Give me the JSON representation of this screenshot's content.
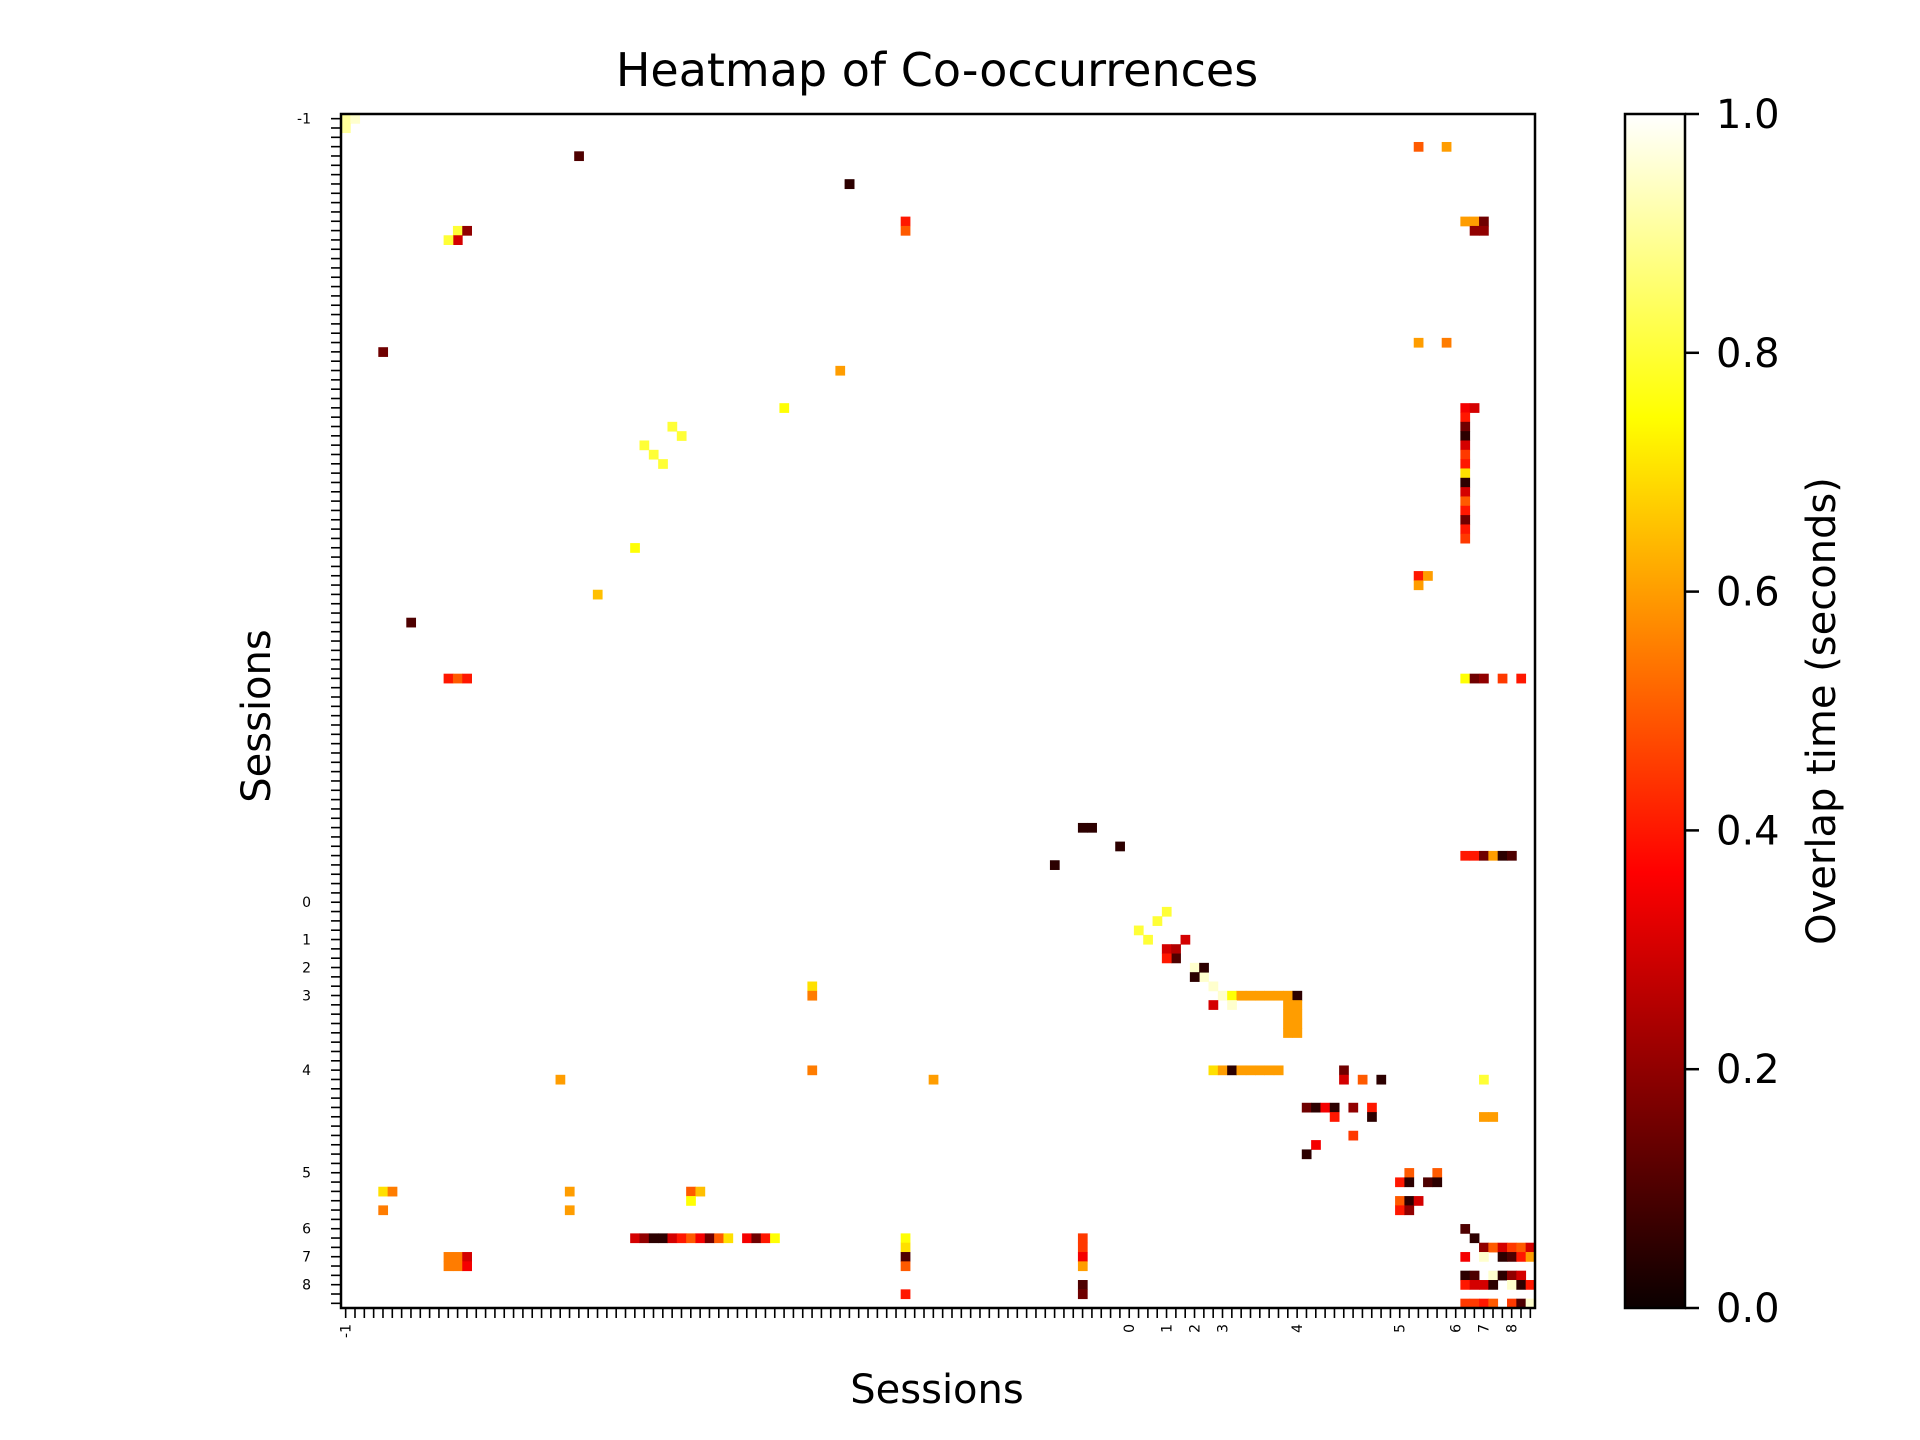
{
  "chart_data": {
    "type": "heatmap",
    "title": "Heatmap of Co-occurrences",
    "xlabel": "Sessions",
    "ylabel": "Sessions",
    "colormap": "hot",
    "colorbar": {
      "label": "Overlap time (seconds)",
      "range": [
        0.0,
        1.0
      ],
      "ticks": [
        "0.0",
        "0.2",
        "0.4",
        "0.6",
        "0.8",
        "1.0"
      ]
    },
    "x_ticks": [
      {
        "label": "-1",
        "index": 0
      },
      {
        "label": "0",
        "index": 84
      },
      {
        "label": "1",
        "index": 88
      },
      {
        "label": "2",
        "index": 91
      },
      {
        "label": "3",
        "index": 94
      },
      {
        "label": "4",
        "index": 102
      },
      {
        "label": "5",
        "index": 113
      },
      {
        "label": "6",
        "index": 119
      },
      {
        "label": "7",
        "index": 122
      },
      {
        "label": "8",
        "index": 125
      }
    ],
    "y_ticks": [
      {
        "label": "-1",
        "index": 0
      },
      {
        "label": "0",
        "index": 84
      },
      {
        "label": "1",
        "index": 88
      },
      {
        "label": "2",
        "index": 91
      },
      {
        "label": "3",
        "index": 94
      },
      {
        "label": "4",
        "index": 102
      },
      {
        "label": "5",
        "index": 113
      },
      {
        "label": "6",
        "index": 119
      },
      {
        "label": "7",
        "index": 122
      },
      {
        "label": "8",
        "index": 125
      }
    ],
    "matrix_size": 128,
    "cells": [
      [
        0,
        0,
        0.9
      ],
      [
        1,
        0,
        0.95
      ],
      [
        0,
        1,
        0.9
      ],
      [
        25,
        4,
        0.1
      ],
      [
        54,
        7,
        0.05
      ],
      [
        12,
        12,
        0.8
      ],
      [
        13,
        12,
        0.2
      ],
      [
        12,
        13,
        0.3
      ],
      [
        11,
        13,
        0.8
      ],
      [
        60,
        11,
        0.4
      ],
      [
        60,
        12,
        0.5
      ],
      [
        4,
        25,
        0.15
      ],
      [
        53,
        27,
        0.6
      ],
      [
        47,
        31,
        0.75
      ],
      [
        35,
        33,
        0.8
      ],
      [
        36,
        34,
        0.8
      ],
      [
        32,
        35,
        0.8
      ],
      [
        33,
        36,
        0.8
      ],
      [
        34,
        37,
        0.8
      ],
      [
        31,
        46,
        0.75
      ],
      [
        27,
        51,
        0.65
      ],
      [
        7,
        54,
        0.1
      ],
      [
        11,
        60,
        0.4
      ],
      [
        12,
        60,
        0.5
      ],
      [
        13,
        60,
        0.4
      ],
      [
        80,
        76,
        0.05
      ],
      [
        76,
        80,
        0.05
      ],
      [
        87,
        86,
        0.8
      ],
      [
        88,
        85,
        0.8
      ],
      [
        85,
        87,
        0.8
      ],
      [
        86,
        88,
        0.8
      ],
      [
        88,
        89,
        0.3
      ],
      [
        89,
        89,
        0.25
      ],
      [
        89,
        90,
        0.1
      ],
      [
        88,
        90,
        0.4
      ],
      [
        90,
        88,
        0.3
      ],
      [
        91,
        91,
        0.95
      ],
      [
        92,
        92,
        0.95
      ],
      [
        91,
        92,
        0.05
      ],
      [
        92,
        91,
        0.05
      ],
      [
        93,
        93,
        0.95
      ],
      [
        94,
        94,
        0.95
      ],
      [
        95,
        94,
        0.75
      ],
      [
        96,
        94,
        0.6
      ],
      [
        97,
        94,
        0.6
      ],
      [
        98,
        94,
        0.6
      ],
      [
        99,
        94,
        0.6
      ],
      [
        100,
        94,
        0.6
      ],
      [
        101,
        94,
        0.6
      ],
      [
        102,
        94,
        0.05
      ],
      [
        93,
        95,
        0.3
      ],
      [
        95,
        95,
        0.95
      ],
      [
        101,
        95,
        0.6
      ],
      [
        102,
        95,
        0.6
      ],
      [
        101,
        96,
        0.6
      ],
      [
        102,
        96,
        0.6
      ],
      [
        101,
        97,
        0.6
      ],
      [
        102,
        97,
        0.6
      ],
      [
        101,
        98,
        0.6
      ],
      [
        102,
        98,
        0.6
      ],
      [
        93,
        102,
        0.7
      ],
      [
        94,
        102,
        0.6
      ],
      [
        95,
        102,
        0.05
      ],
      [
        96,
        102,
        0.6
      ],
      [
        97,
        102,
        0.6
      ],
      [
        98,
        102,
        0.6
      ],
      [
        99,
        102,
        0.6
      ],
      [
        100,
        102,
        0.6
      ],
      [
        107,
        102,
        0.15
      ],
      [
        107,
        103,
        0.3
      ],
      [
        109,
        103,
        0.5
      ],
      [
        111,
        103,
        0.05
      ],
      [
        103,
        106,
        0.15
      ],
      [
        104,
        106,
        0.05
      ],
      [
        105,
        106,
        0.35
      ],
      [
        106,
        106,
        0.05
      ],
      [
        108,
        106,
        0.2
      ],
      [
        110,
        106,
        0.4
      ],
      [
        106,
        107,
        0.4
      ],
      [
        110,
        107,
        0.05
      ],
      [
        108,
        109,
        0.45
      ],
      [
        104,
        110,
        0.35
      ],
      [
        103,
        111,
        0.05
      ],
      [
        114,
        113,
        0.5
      ],
      [
        117,
        113,
        0.5
      ],
      [
        113,
        114,
        0.4
      ],
      [
        114,
        114,
        0.05
      ],
      [
        116,
        114,
        0.1
      ],
      [
        117,
        114,
        0.05
      ],
      [
        113,
        116,
        0.5
      ],
      [
        114,
        116,
        0.05
      ],
      [
        115,
        116,
        0.3
      ],
      [
        113,
        117,
        0.4
      ],
      [
        114,
        117,
        0.2
      ],
      [
        120,
        119,
        0.1
      ],
      [
        121,
        120,
        0.05
      ],
      [
        122,
        121,
        0.2
      ],
      [
        123,
        121,
        0.5
      ],
      [
        124,
        121,
        0.3
      ],
      [
        125,
        121,
        0.45
      ],
      [
        126,
        121,
        0.5
      ],
      [
        127,
        121,
        0.3
      ],
      [
        120,
        122,
        0.35
      ],
      [
        122,
        122,
        0.95
      ],
      [
        124,
        122,
        0.05
      ],
      [
        125,
        122,
        0.1
      ],
      [
        126,
        122,
        0.4
      ],
      [
        127,
        122,
        0.6
      ],
      [
        120,
        124,
        0.05
      ],
      [
        121,
        124,
        0.1
      ],
      [
        123,
        124,
        0.95
      ],
      [
        124,
        124,
        0.05
      ],
      [
        125,
        124,
        0.2
      ],
      [
        126,
        124,
        0.3
      ],
      [
        120,
        125,
        0.4
      ],
      [
        121,
        125,
        0.3
      ],
      [
        122,
        125,
        0.3
      ],
      [
        123,
        125,
        0.05
      ],
      [
        125,
        125,
        0.95
      ],
      [
        126,
        125,
        0.05
      ],
      [
        127,
        125,
        0.4
      ],
      [
        120,
        127,
        0.45
      ],
      [
        121,
        127,
        0.45
      ],
      [
        122,
        127,
        0.4
      ],
      [
        123,
        127,
        0.5
      ],
      [
        125,
        127,
        0.45
      ],
      [
        126,
        127,
        0.1
      ],
      [
        127,
        127,
        0.95
      ],
      [
        31,
        120,
        0.3
      ],
      [
        32,
        120,
        0.2
      ],
      [
        33,
        120,
        0.05
      ],
      [
        34,
        120,
        0.05
      ],
      [
        35,
        120,
        0.3
      ],
      [
        36,
        120,
        0.4
      ],
      [
        37,
        120,
        0.5
      ],
      [
        38,
        120,
        0.35
      ],
      [
        39,
        120,
        0.15
      ],
      [
        40,
        120,
        0.5
      ],
      [
        41,
        120,
        0.7
      ],
      [
        43,
        120,
        0.35
      ],
      [
        44,
        120,
        0.15
      ],
      [
        45,
        120,
        0.4
      ],
      [
        46,
        120,
        0.75
      ],
      [
        11,
        122,
        0.55
      ],
      [
        12,
        122,
        0.55
      ],
      [
        13,
        122,
        0.3
      ],
      [
        11,
        123,
        0.55
      ],
      [
        12,
        123,
        0.55
      ],
      [
        13,
        123,
        0.35
      ],
      [
        60,
        120,
        0.75
      ],
      [
        60,
        121,
        0.7
      ],
      [
        60,
        122,
        0.1
      ],
      [
        60,
        123,
        0.5
      ],
      [
        60,
        126,
        0.4
      ],
      [
        79,
        120,
        0.45
      ],
      [
        79,
        121,
        0.45
      ],
      [
        79,
        122,
        0.35
      ],
      [
        79,
        123,
        0.6
      ],
      [
        79,
        125,
        0.1
      ],
      [
        79,
        126,
        0.15
      ],
      [
        120,
        31,
        0.35
      ],
      [
        121,
        31,
        0.3
      ],
      [
        120,
        32,
        0.4
      ],
      [
        120,
        33,
        0.15
      ],
      [
        120,
        34,
        0.05
      ],
      [
        120,
        35,
        0.3
      ],
      [
        120,
        36,
        0.45
      ],
      [
        120,
        37,
        0.4
      ],
      [
        120,
        38,
        0.7
      ],
      [
        120,
        39,
        0.05
      ],
      [
        120,
        40,
        0.3
      ],
      [
        120,
        41,
        0.5
      ],
      [
        120,
        42,
        0.4
      ],
      [
        120,
        43,
        0.15
      ],
      [
        120,
        44,
        0.4
      ],
      [
        120,
        45,
        0.45
      ],
      [
        120,
        11,
        0.6
      ],
      [
        121,
        11,
        0.6
      ],
      [
        122,
        11,
        0.15
      ],
      [
        121,
        12,
        0.2
      ],
      [
        122,
        12,
        0.2
      ],
      [
        115,
        3,
        0.5
      ],
      [
        118,
        3,
        0.6
      ],
      [
        115,
        24,
        0.6
      ],
      [
        118,
        24,
        0.55
      ],
      [
        115,
        49,
        0.4
      ],
      [
        116,
        49,
        0.6
      ],
      [
        115,
        50,
        0.6
      ],
      [
        120,
        60,
        0.75
      ],
      [
        121,
        60,
        0.15
      ],
      [
        122,
        60,
        0.2
      ],
      [
        124,
        60,
        0.45
      ],
      [
        126,
        60,
        0.4
      ],
      [
        120,
        79,
        0.4
      ],
      [
        121,
        79,
        0.4
      ],
      [
        122,
        79,
        0.15
      ],
      [
        123,
        79,
        0.6
      ],
      [
        124,
        79,
        0.05
      ],
      [
        125,
        79,
        0.1
      ],
      [
        122,
        103,
        0.8
      ],
      [
        122,
        107,
        0.6
      ],
      [
        123,
        107,
        0.6
      ],
      [
        37,
        115,
        0.5
      ],
      [
        38,
        115,
        0.65
      ],
      [
        37,
        116,
        0.75
      ],
      [
        4,
        115,
        0.7
      ],
      [
        5,
        115,
        0.55
      ],
      [
        4,
        117,
        0.55
      ],
      [
        24,
        115,
        0.6
      ],
      [
        24,
        117,
        0.6
      ],
      [
        23,
        103,
        0.6
      ],
      [
        63,
        103,
        0.6
      ],
      [
        50,
        93,
        0.7
      ],
      [
        50,
        94,
        0.55
      ],
      [
        50,
        102,
        0.55
      ],
      [
        54,
        7,
        0.05
      ],
      [
        79,
        76,
        0.05
      ],
      [
        83,
        78,
        0.05
      ]
    ]
  }
}
